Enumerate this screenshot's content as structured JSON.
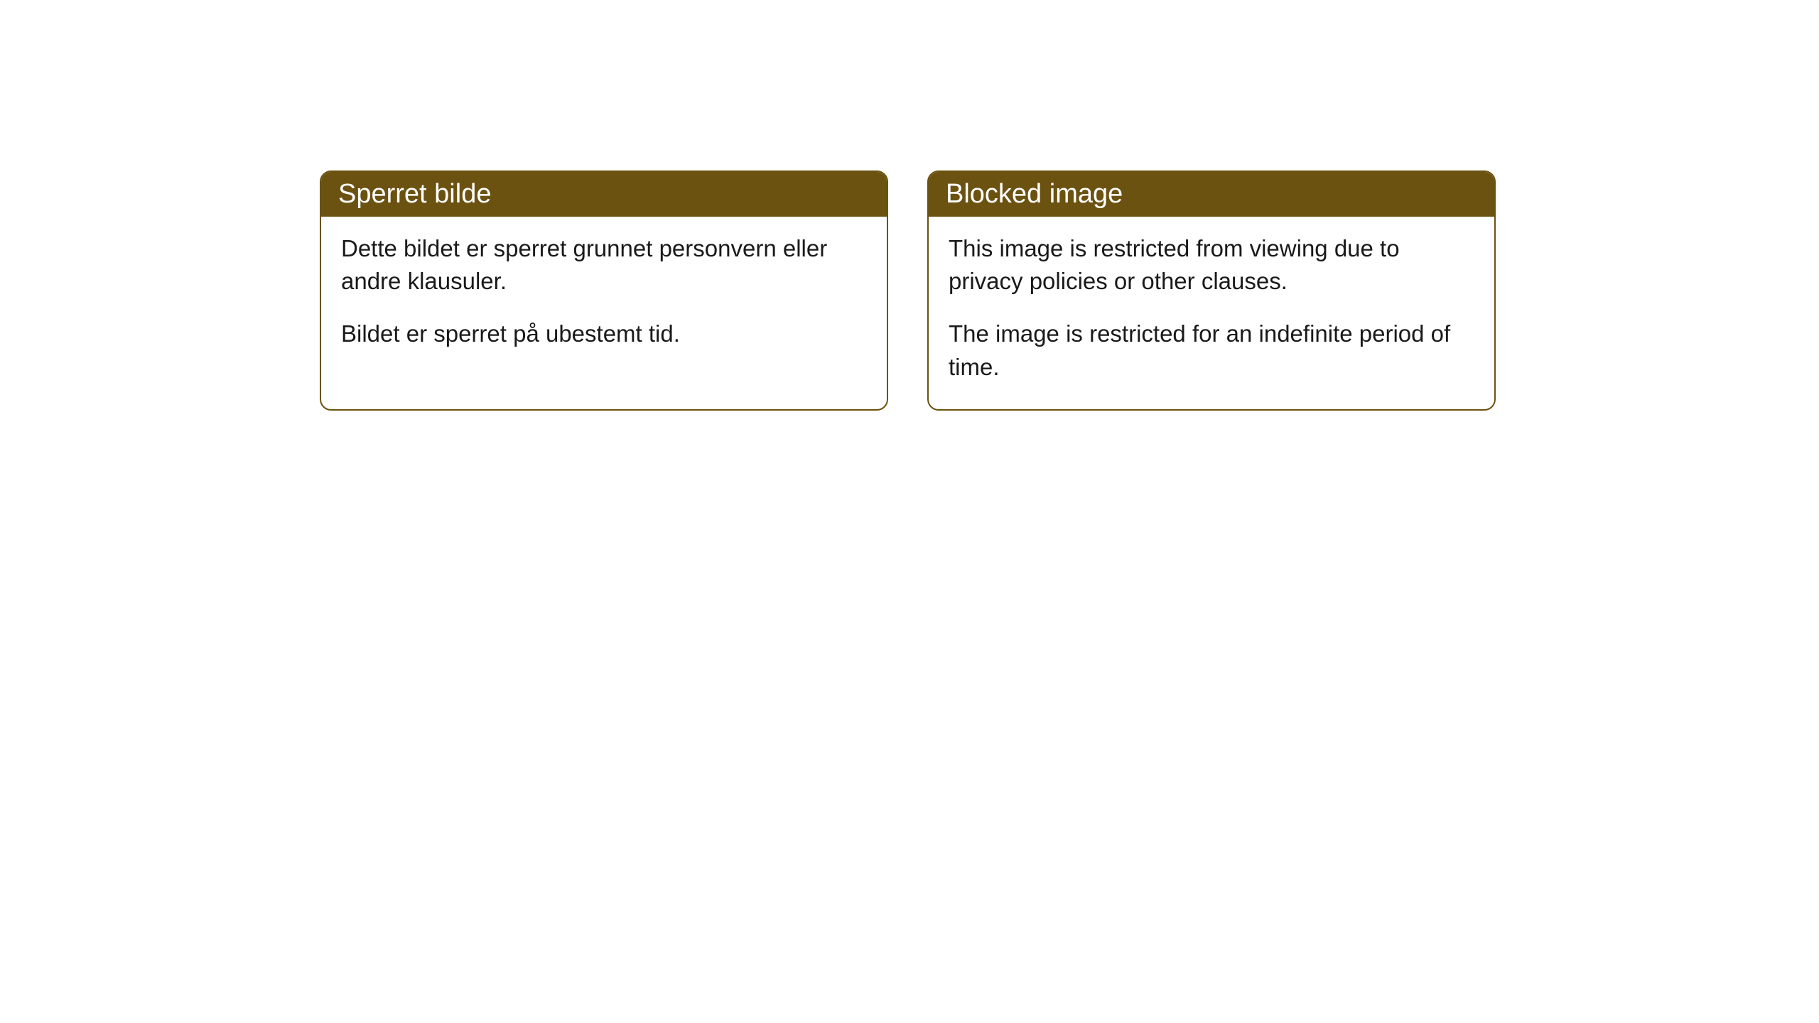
{
  "cards": [
    {
      "title": "Sperret bilde",
      "paragraph1": "Dette bildet er sperret grunnet personvern eller andre klausuler.",
      "paragraph2": "Bildet er sperret på ubestemt tid."
    },
    {
      "title": "Blocked image",
      "paragraph1": "This image is restricted from viewing due to privacy policies or other clauses.",
      "paragraph2": "The image is restricted for an indefinite period of time."
    }
  ],
  "styling": {
    "header_background": "#6b5210",
    "header_text_color": "#ffffff",
    "border_color": "#6b5210",
    "body_background": "#ffffff",
    "body_text_color": "#1a1a1a",
    "border_radius": "16px",
    "header_fontsize": 38,
    "body_fontsize": 33
  }
}
